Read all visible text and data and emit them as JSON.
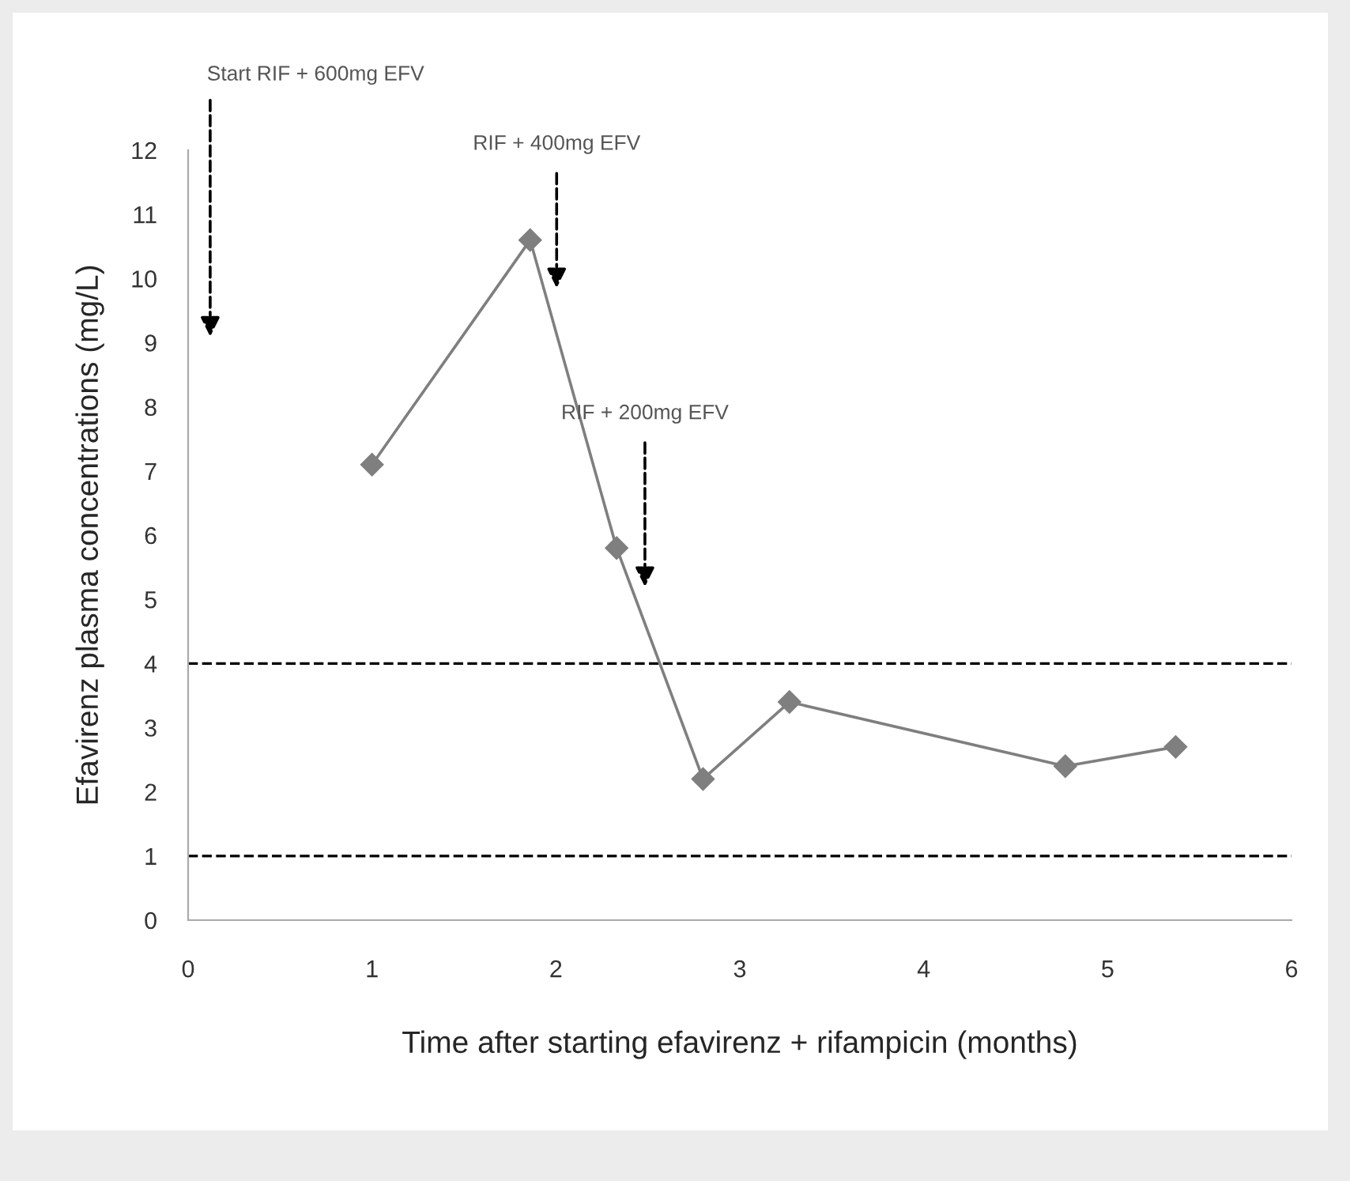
{
  "chart_data": {
    "type": "line",
    "xlabel": "Time after starting efavirenz + rifampicin (months)",
    "ylabel": "Efavirenz plasma concentrations (mg/L)",
    "series": [
      {
        "color": "#7f7f7f",
        "x": [
          1.0,
          1.86,
          2.33,
          2.8,
          3.27,
          4.77,
          5.37
        ],
        "values": [
          7.1,
          10.6,
          5.8,
          2.2,
          3.4,
          2.4,
          2.7
        ]
      }
    ],
    "marker": "diamond",
    "line_style": "solid",
    "xlim": [
      0,
      6
    ],
    "xticks": [
      0,
      1,
      2,
      3,
      4,
      5,
      6
    ],
    "ylim": [
      0,
      12
    ],
    "yticks": [
      0,
      1,
      2,
      3,
      4,
      5,
      6,
      7,
      8,
      9,
      10,
      11,
      12
    ],
    "grid": false,
    "legend": false,
    "ref_lines": [
      {
        "axis": "y",
        "value": 4,
        "color": "#000000",
        "line_style": "dashed"
      },
      {
        "axis": "y",
        "value": 1,
        "color": "#000000",
        "line_style": "dashed"
      }
    ],
    "annotations": [
      "Start RIF + 600mg EFV",
      "RIF + 400mg EFV",
      "RIF + 200mg EFV"
    ]
  }
}
